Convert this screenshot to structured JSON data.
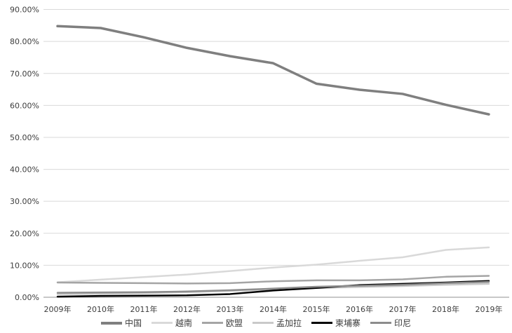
{
  "chart_data": {
    "type": "line",
    "title": "",
    "xlabel": "",
    "ylabel": "",
    "ylim": [
      0,
      90
    ],
    "ytick_step": 10,
    "grid": true,
    "legend_position": "bottom",
    "yticks": [
      "0.00%",
      "10.00%",
      "20.00%",
      "30.00%",
      "40.00%",
      "50.00%",
      "60.00%",
      "70.00%",
      "80.00%",
      "90.00%"
    ],
    "categories": [
      "2009年",
      "2010年",
      "2011年",
      "2012年",
      "2013年",
      "2014年",
      "2015年",
      "2016年",
      "2017年",
      "2018年",
      "2019年"
    ],
    "series": [
      {
        "name": "中国",
        "color": "#7f7f7f",
        "width": 3.5,
        "values": [
          84.8,
          84.2,
          81.3,
          78.0,
          75.4,
          73.2,
          66.8,
          64.9,
          63.6,
          60.2,
          57.2
        ]
      },
      {
        "name": "越南",
        "color": "#d9d9d9",
        "width": 2.5,
        "values": [
          4.7,
          5.5,
          6.3,
          7.1,
          8.2,
          9.3,
          10.2,
          11.4,
          12.5,
          14.8,
          15.6
        ]
      },
      {
        "name": "欧盟",
        "color": "#a5a5a5",
        "width": 2.5,
        "values": [
          4.6,
          4.5,
          4.4,
          4.3,
          4.4,
          5.0,
          5.3,
          5.3,
          5.6,
          6.4,
          6.7
        ]
      },
      {
        "name": "孟加拉",
        "color": "#c9c9c9",
        "width": 2.5,
        "values": [
          1.0,
          1.1,
          1.3,
          1.6,
          2.0,
          2.5,
          2.9,
          3.2,
          3.5,
          3.9,
          4.2
        ]
      },
      {
        "name": "柬埔寨",
        "color": "#000000",
        "width": 2.5,
        "values": [
          0.2,
          0.4,
          0.5,
          0.6,
          1.0,
          2.1,
          2.9,
          3.8,
          4.2,
          4.6,
          5.1
        ]
      },
      {
        "name": "印尼",
        "color": "#8c8c8c",
        "width": 2.5,
        "values": [
          1.4,
          1.5,
          1.6,
          1.8,
          2.2,
          2.7,
          3.3,
          3.6,
          3.9,
          4.4,
          4.8
        ]
      }
    ],
    "colors": {
      "gridline": "#d9d9d9",
      "axis_line": "#a6a6a6",
      "tick_text": "#3d3d3d"
    }
  }
}
